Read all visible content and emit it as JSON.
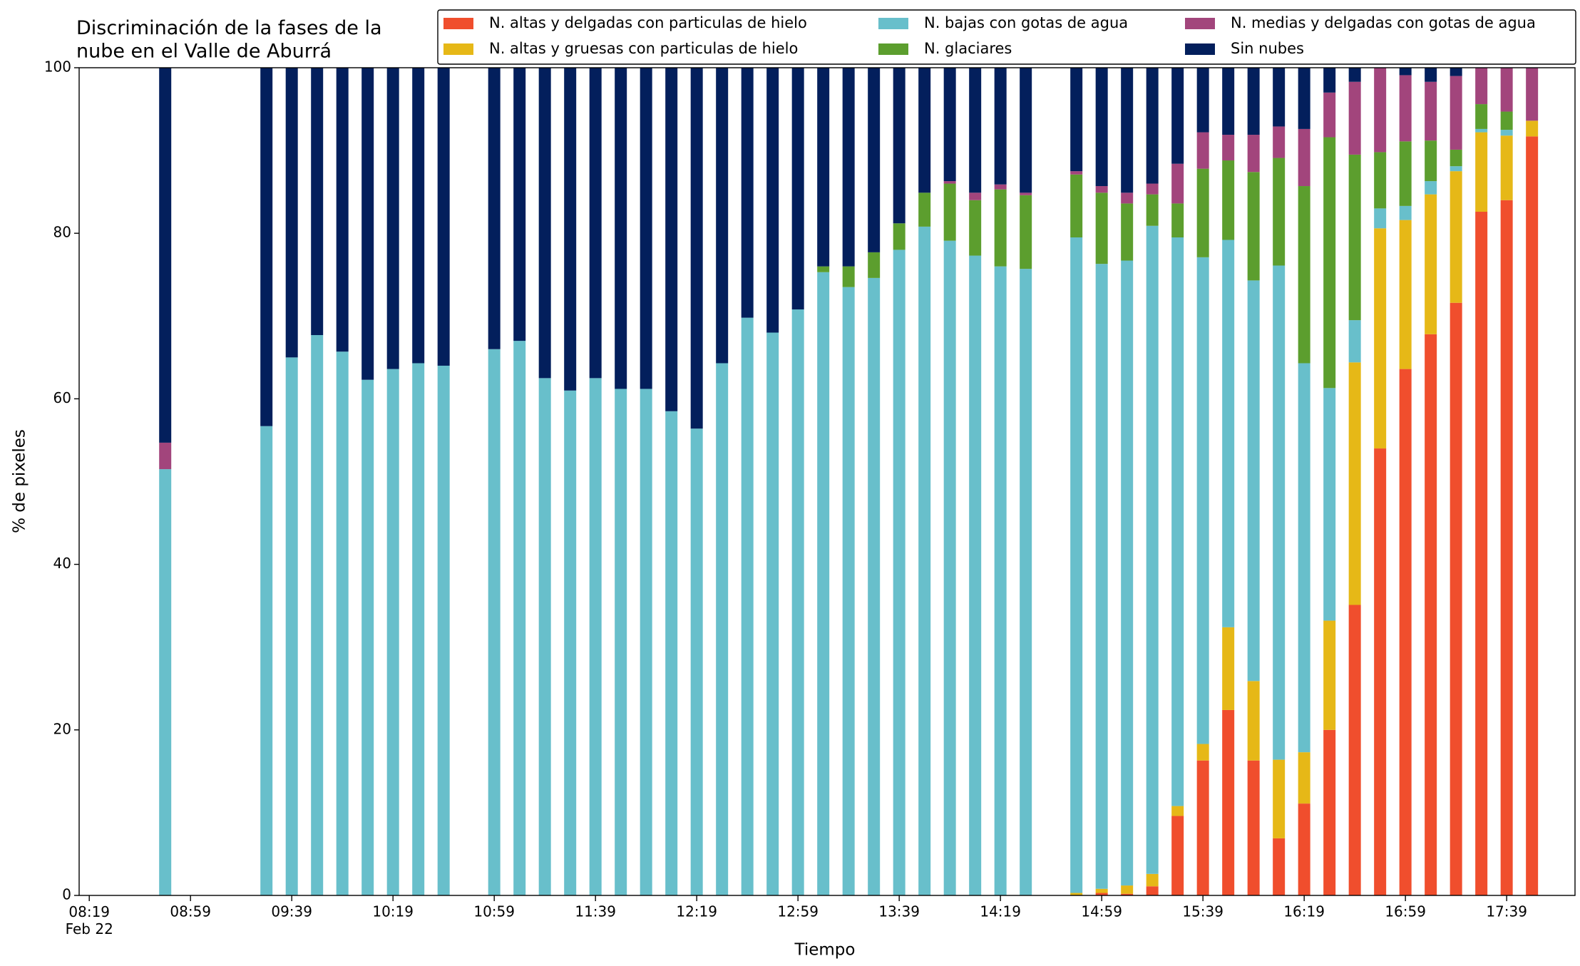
{
  "chart_data": {
    "type": "stacked_bar",
    "title": "Discriminación de la fases de la\nnube en el Valle de Aburrá",
    "xlabel": "Tiempo",
    "ylabel": "% de pixeles",
    "x": [
      "08:49",
      "09:29",
      "09:39",
      "09:49",
      "09:59",
      "10:09",
      "10:19",
      "10:29",
      "10:39",
      "10:59",
      "11:09",
      "11:19",
      "11:29",
      "11:39",
      "11:49",
      "11:59",
      "12:09",
      "12:19",
      "12:29",
      "12:39",
      "12:49",
      "12:59",
      "13:09",
      "13:19",
      "13:29",
      "13:39",
      "13:49",
      "13:59",
      "14:09",
      "14:19",
      "14:29",
      "14:49",
      "14:59",
      "15:09",
      "15:19",
      "15:29",
      "15:39",
      "15:49",
      "15:59",
      "16:09",
      "16:19",
      "16:29",
      "16:39",
      "16:49",
      "16:59",
      "17:09",
      "17:19",
      "17:29",
      "17:39",
      "17:49"
    ],
    "series": [
      {
        "name": "N. altas y delgadas con particulas de hielo",
        "color": "#f04e2d",
        "values": [
          0,
          0,
          0,
          0,
          0,
          0,
          0,
          0,
          0,
          0,
          0,
          0,
          0,
          0,
          0,
          0,
          0,
          0,
          0,
          0,
          0,
          0,
          0,
          0,
          0,
          0,
          0,
          0,
          0,
          0,
          0,
          0,
          0.3,
          0.2,
          1.1,
          9.6,
          16.3,
          22.4,
          16.3,
          6.9,
          11.1,
          20,
          35.1,
          54,
          63.6,
          67.8,
          71.6,
          82.6,
          84,
          91.7
        ]
      },
      {
        "name": "N. altas y gruesas con particulas de hielo",
        "color": "#e6b817",
        "values": [
          0,
          0,
          0,
          0,
          0,
          0,
          0,
          0,
          0,
          0,
          0,
          0,
          0,
          0,
          0,
          0,
          0,
          0,
          0,
          0,
          0,
          0,
          0,
          0,
          0,
          0,
          0,
          0,
          0,
          0,
          0,
          0.3,
          0.5,
          1,
          1.5,
          1.2,
          2,
          10,
          9.6,
          9.5,
          6.2,
          13.2,
          29.3,
          26.6,
          18,
          16.9,
          15.9,
          9.6,
          7.8,
          1.9
        ]
      },
      {
        "name": "N. bajas con gotas de agua",
        "color": "#68bfcb",
        "values": [
          51.5,
          56.7,
          65,
          67.7,
          65.7,
          62.3,
          63.6,
          64.3,
          64,
          66,
          67,
          62.5,
          61,
          62.5,
          61.2,
          61.2,
          58.5,
          56.4,
          64.3,
          69.8,
          68,
          70.8,
          75.3,
          73.5,
          74.6,
          78,
          80.8,
          79.1,
          77.3,
          76,
          75.7,
          79.2,
          75.5,
          75.5,
          78.3,
          68.7,
          58.8,
          46.8,
          48.4,
          59.7,
          47,
          28.1,
          5.1,
          2.4,
          1.7,
          1.6,
          0.6,
          0.4,
          0.7,
          0
        ]
      },
      {
        "name": "N. glaciares",
        "color": "#5c9e2e",
        "values": [
          0,
          0,
          0,
          0,
          0,
          0,
          0,
          0,
          0,
          0,
          0,
          0,
          0,
          0,
          0,
          0,
          0,
          0,
          0,
          0,
          0,
          0,
          0.7,
          2.5,
          3.1,
          3.2,
          4.1,
          6.9,
          6.7,
          9.3,
          8.9,
          7.6,
          8.6,
          6.9,
          3.8,
          4.1,
          10.7,
          9.6,
          13.1,
          13,
          21.4,
          30.3,
          20,
          6.8,
          7.8,
          4.9,
          2,
          3,
          2.2,
          0
        ]
      },
      {
        "name": "N. medias y delgadas con gotas de agua",
        "color": "#a2457c",
        "values": [
          3.2,
          0,
          0,
          0,
          0,
          0,
          0,
          0,
          0,
          0,
          0,
          0,
          0,
          0,
          0,
          0,
          0,
          0,
          0,
          0,
          0,
          0,
          0,
          0,
          0,
          0,
          0,
          0.3,
          0.9,
          0.6,
          0.3,
          0.4,
          0.8,
          1.3,
          1.3,
          4.8,
          4.4,
          3.1,
          4.5,
          3.8,
          6.9,
          5.4,
          8.8,
          10.2,
          8,
          7.1,
          8.9,
          4.4,
          5.3,
          6.4
        ]
      },
      {
        "name": "Sin nubes",
        "color": "#031f5c",
        "values": [
          45.3,
          43.3,
          35,
          32.3,
          34.3,
          37.7,
          36.4,
          35.7,
          36,
          34,
          33,
          37.5,
          39,
          37.5,
          38.8,
          38.8,
          41.5,
          43.6,
          35.7,
          30.2,
          32,
          29.2,
          24,
          24,
          22.3,
          18.8,
          15.1,
          13.7,
          15.1,
          14.1,
          15.1,
          12.5,
          14.3,
          15.1,
          14,
          11.6,
          7.8,
          8.1,
          8.1,
          7.1,
          7.4,
          3,
          1.7,
          0,
          0.9,
          1.7,
          1,
          0,
          0,
          0
        ]
      }
    ],
    "xlim": [
      "08:15",
      "18:06"
    ],
    "xticks": [
      {
        "value": "08:19",
        "label": "08:19\nFeb 22"
      },
      "08:59",
      "09:39",
      "10:19",
      "10:59",
      "11:39",
      "12:19",
      "12:59",
      "13:39",
      "14:19",
      "14:59",
      "15:39",
      "16:19",
      "16:59",
      "17:39"
    ],
    "ylim": [
      0,
      100
    ],
    "yticks": [
      0,
      20,
      40,
      60,
      80,
      100
    ],
    "legend": "upper right",
    "legend_columns": 3
  }
}
